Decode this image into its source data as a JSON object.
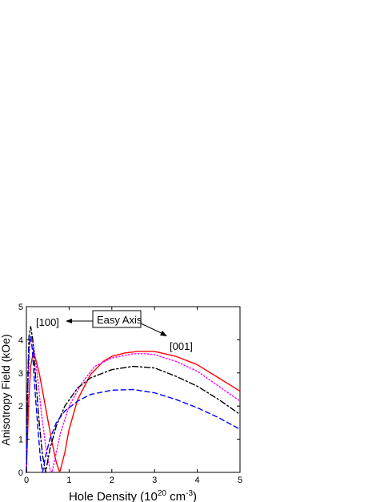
{
  "chart_data": {
    "type": "line",
    "title": "",
    "xlabel": "Hole Density (10",
    "xlabel_sup": "20",
    "xlabel_mid": " cm",
    "xlabel_sup2": "-3",
    "xlabel_end": ")",
    "ylabel": "Anisotropy Field (kOe)",
    "xlim": [
      0,
      5
    ],
    "ylim": [
      0,
      5
    ],
    "xticks": [
      "0",
      "1",
      "2",
      "3",
      "4",
      "5"
    ],
    "yticks": [
      "0",
      "1",
      "2",
      "3",
      "4",
      "5"
    ],
    "grid": false,
    "annotations": {
      "easy_axis": "Easy Axis",
      "label_100": "[100]",
      "label_001": "[001]"
    },
    "series": [
      {
        "color": "#ff0000",
        "style": "solid",
        "points": [
          [
            0,
            0
          ],
          [
            0.05,
            2.0
          ],
          [
            0.1,
            3.2
          ],
          [
            0.15,
            3.55
          ],
          [
            0.2,
            3.5
          ],
          [
            0.3,
            3.0
          ],
          [
            0.4,
            2.3
          ],
          [
            0.5,
            1.6
          ],
          [
            0.6,
            0.9
          ],
          [
            0.7,
            0.3
          ],
          [
            0.78,
            0
          ],
          [
            0.9,
            0.6
          ],
          [
            1.0,
            1.3
          ],
          [
            1.2,
            2.2
          ],
          [
            1.5,
            2.95
          ],
          [
            1.8,
            3.35
          ],
          [
            2.0,
            3.5
          ],
          [
            2.3,
            3.6
          ],
          [
            2.6,
            3.65
          ],
          [
            3.0,
            3.65
          ],
          [
            3.5,
            3.5
          ],
          [
            4.0,
            3.25
          ],
          [
            4.5,
            2.85
          ],
          [
            5.0,
            2.45
          ]
        ]
      },
      {
        "color": "#ff00ff",
        "style": "dotted",
        "points": [
          [
            0,
            0
          ],
          [
            0.04,
            2.8
          ],
          [
            0.08,
            3.9
          ],
          [
            0.12,
            4.1
          ],
          [
            0.17,
            3.8
          ],
          [
            0.25,
            3.0
          ],
          [
            0.35,
            1.8
          ],
          [
            0.45,
            0.8
          ],
          [
            0.55,
            0.1
          ],
          [
            0.6,
            0
          ],
          [
            0.7,
            0.6
          ],
          [
            0.8,
            1.2
          ],
          [
            1.0,
            2.0
          ],
          [
            1.3,
            2.7
          ],
          [
            1.6,
            3.2
          ],
          [
            2.0,
            3.45
          ],
          [
            2.5,
            3.58
          ],
          [
            2.8,
            3.58
          ],
          [
            3.0,
            3.55
          ],
          [
            3.5,
            3.35
          ],
          [
            4.0,
            3.05
          ],
          [
            4.5,
            2.6
          ],
          [
            5.0,
            2.15
          ]
        ]
      },
      {
        "color": "#000000",
        "style": "dashdot",
        "points": [
          [
            0,
            0
          ],
          [
            0.03,
            2.7
          ],
          [
            0.06,
            4.1
          ],
          [
            0.1,
            4.4
          ],
          [
            0.15,
            4.0
          ],
          [
            0.22,
            2.8
          ],
          [
            0.3,
            1.5
          ],
          [
            0.38,
            0.5
          ],
          [
            0.45,
            0
          ],
          [
            0.55,
            0.7
          ],
          [
            0.7,
            1.4
          ],
          [
            0.9,
            2.0
          ],
          [
            1.2,
            2.55
          ],
          [
            1.5,
            2.85
          ],
          [
            2.0,
            3.1
          ],
          [
            2.5,
            3.2
          ],
          [
            3.0,
            3.15
          ],
          [
            3.5,
            2.9
          ],
          [
            4.0,
            2.6
          ],
          [
            4.5,
            2.2
          ],
          [
            5.0,
            1.75
          ]
        ]
      },
      {
        "color": "#0000ff",
        "style": "dashed",
        "points": [
          [
            0,
            0
          ],
          [
            0.03,
            2.5
          ],
          [
            0.06,
            3.8
          ],
          [
            0.1,
            4.1
          ],
          [
            0.14,
            3.7
          ],
          [
            0.2,
            2.5
          ],
          [
            0.27,
            1.3
          ],
          [
            0.33,
            0.4
          ],
          [
            0.38,
            0
          ],
          [
            0.45,
            0.5
          ],
          [
            0.55,
            1.0
          ],
          [
            0.7,
            1.5
          ],
          [
            0.9,
            1.85
          ],
          [
            1.2,
            2.15
          ],
          [
            1.5,
            2.35
          ],
          [
            2.0,
            2.48
          ],
          [
            2.5,
            2.5
          ],
          [
            3.0,
            2.4
          ],
          [
            3.5,
            2.2
          ],
          [
            4.0,
            1.95
          ],
          [
            4.5,
            1.65
          ],
          [
            5.0,
            1.3
          ]
        ]
      }
    ]
  }
}
